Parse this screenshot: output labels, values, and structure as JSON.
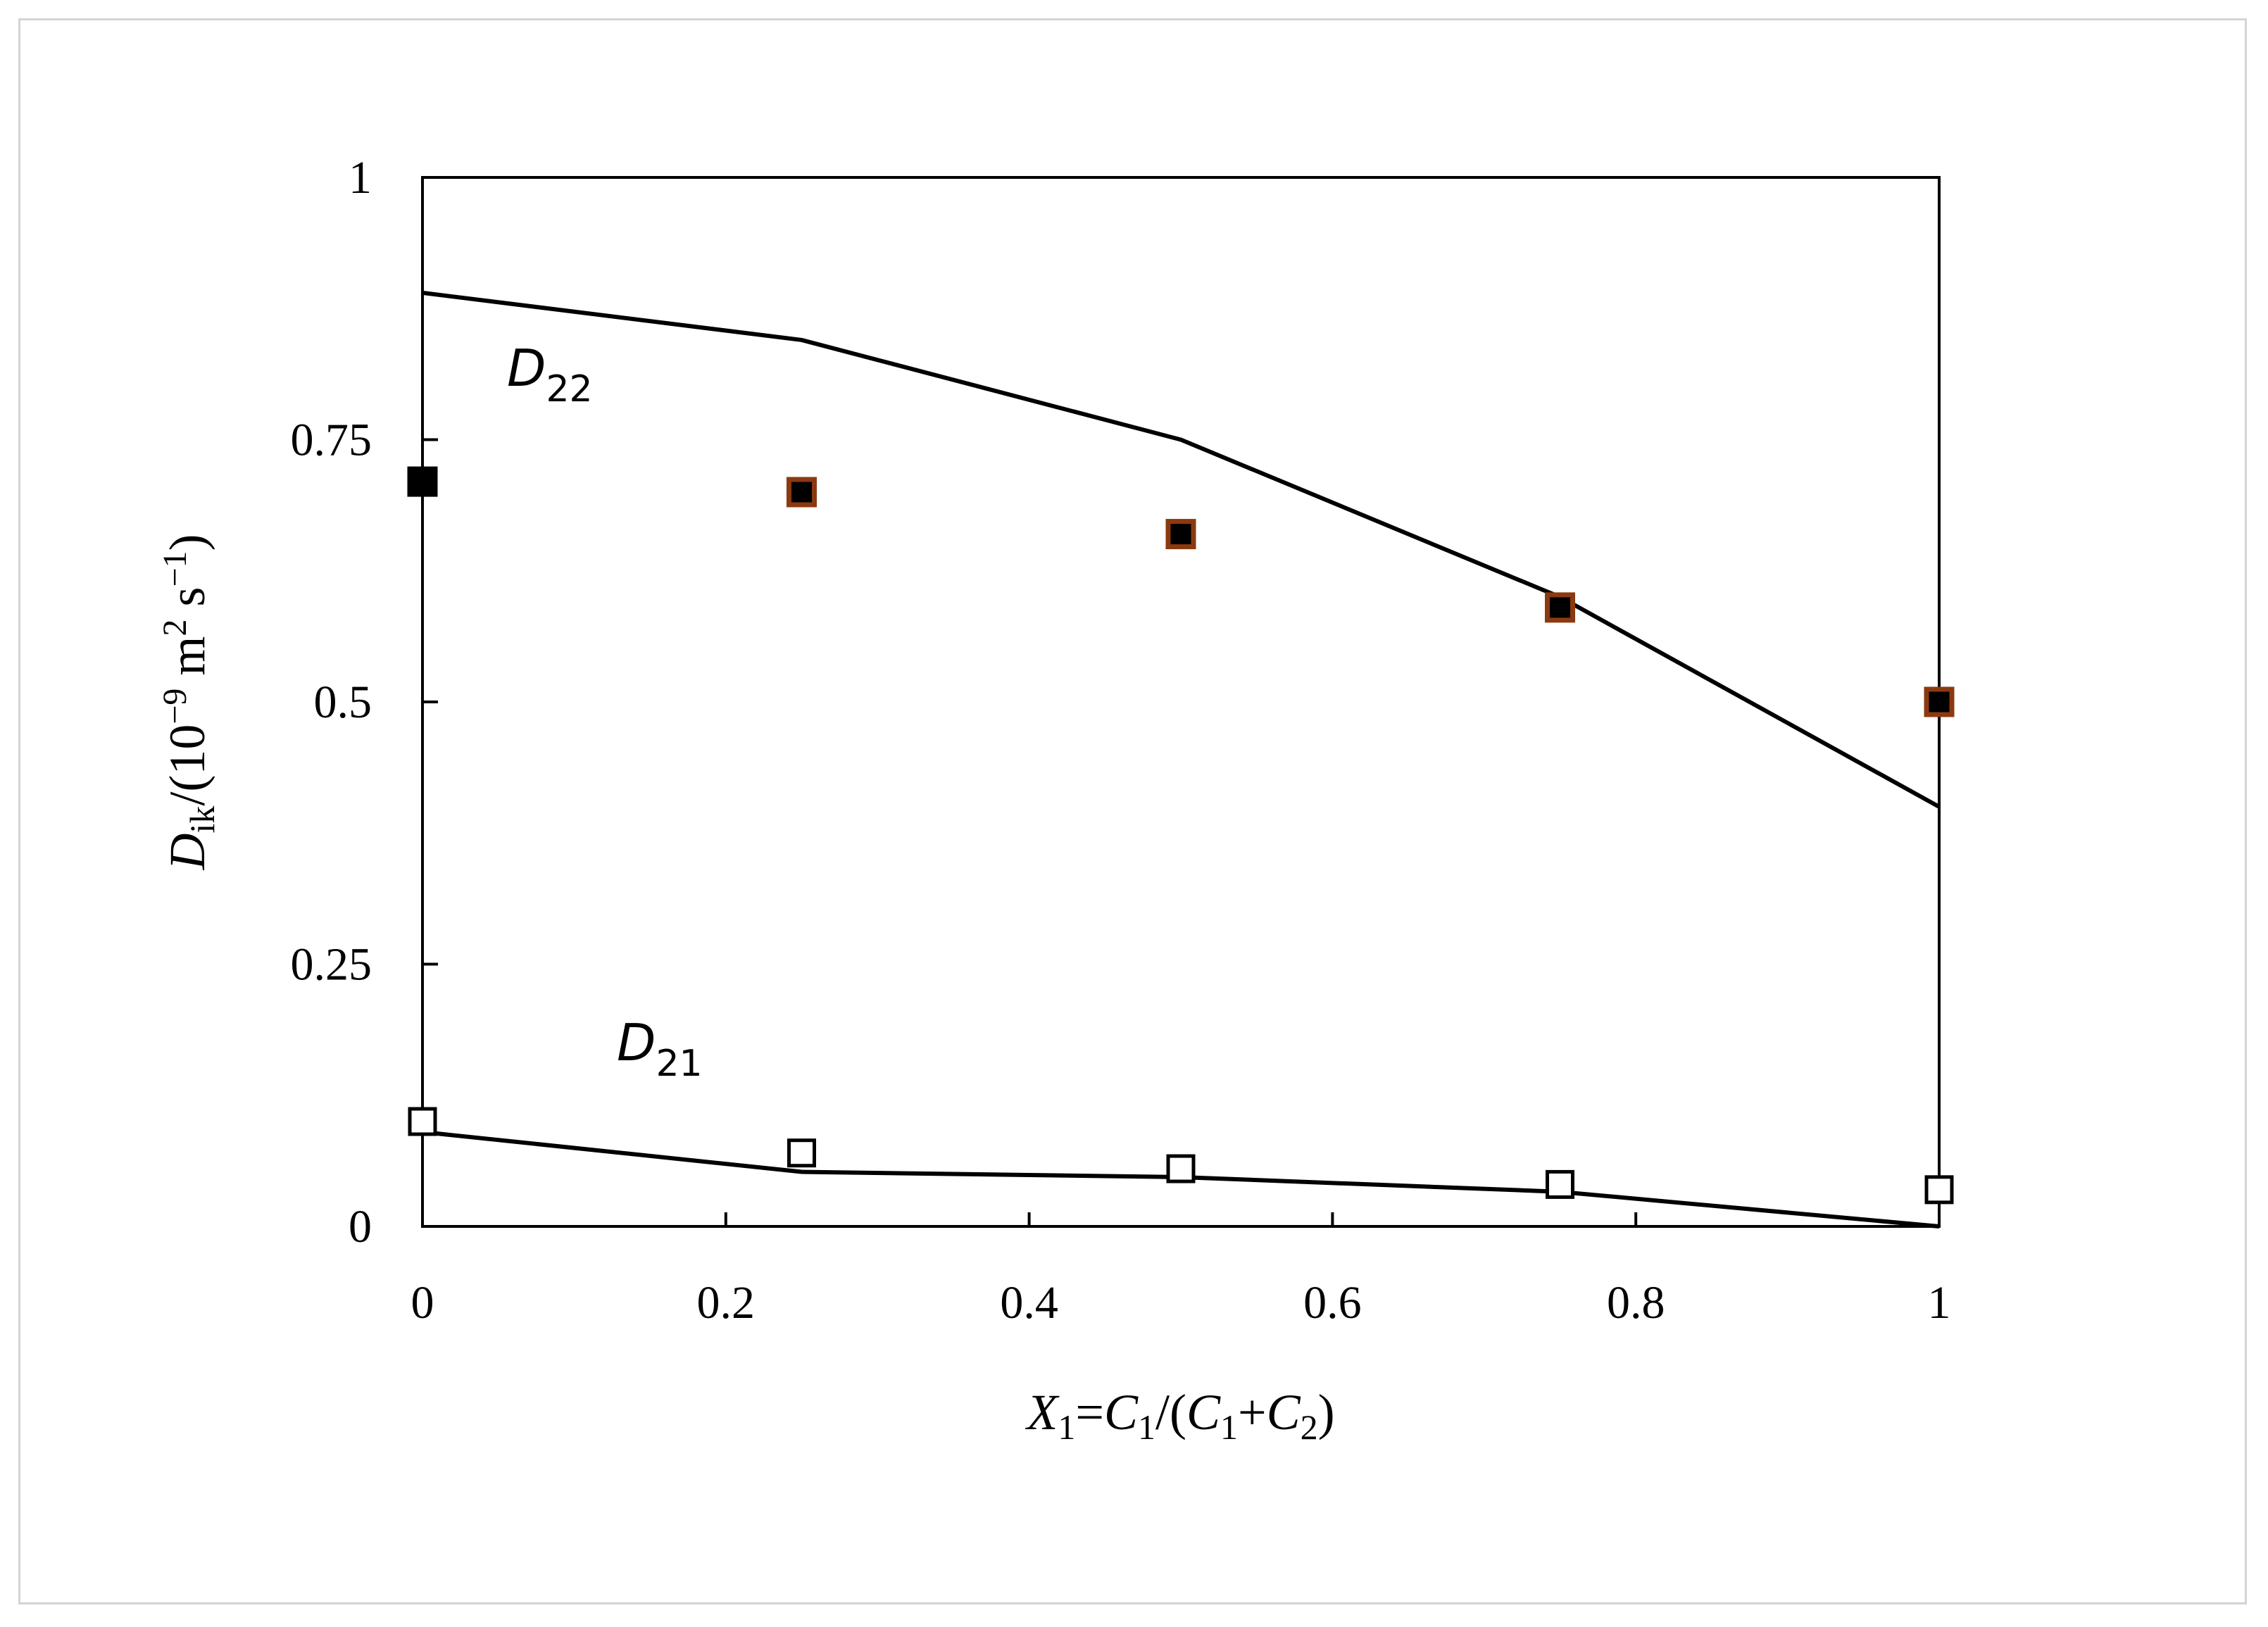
{
  "chart_data": {
    "type": "scatter",
    "xlim": [
      0,
      1
    ],
    "ylim": [
      0,
      1
    ],
    "x_ticks": [
      "0",
      "0.2",
      "0.4",
      "0.6",
      "0.8",
      "1"
    ],
    "y_ticks": [
      "0",
      "0.25",
      "0.5",
      "0.75",
      "1"
    ],
    "xlabel": {
      "X": "X",
      "X_sub": "1",
      "eq": "=",
      "C1": "C",
      "C1_sub": "1",
      "mid": "/(",
      "C1b": "C",
      "C1b_sub": "1",
      "plus": "+",
      "C2": "C",
      "C2_sub": "2",
      "close": ")"
    },
    "ylabel": {
      "D": "D",
      "D_sub": "ik",
      "open": "/(10",
      "exp1": "−9",
      "m": " m",
      "exp2": "2",
      "s": " s",
      "exp3": "−1",
      "close": ")"
    },
    "annotations": [
      {
        "main": "D",
        "sub": "22",
        "x": 0.06,
        "y": 0.8
      },
      {
        "main": "D",
        "sub": "21",
        "x": 0.13,
        "y": 0.145
      }
    ],
    "series": [
      {
        "kind": "points",
        "marker": "filled-square",
        "x": [
          0,
          0.25,
          0.5,
          0.75,
          1
        ],
        "y": [
          0.71,
          0.7,
          0.66,
          0.59,
          0.5
        ],
        "edge_colors": [
          "#000000",
          "#8b3a0f",
          "#8b3a0f",
          "#8b3a0f",
          "#8b3a0f"
        ]
      },
      {
        "kind": "line",
        "x": [
          0,
          0.25,
          0.5,
          0.75,
          1
        ],
        "y": [
          0.89,
          0.845,
          0.75,
          0.6,
          0.4
        ]
      },
      {
        "kind": "points",
        "marker": "open-square",
        "x": [
          0,
          0.25,
          0.5,
          0.75,
          1
        ],
        "y": [
          0.1,
          0.07,
          0.055,
          0.04,
          0.035
        ]
      },
      {
        "kind": "line",
        "x": [
          0,
          0.25,
          0.5,
          0.75,
          1
        ],
        "y": [
          0.09,
          0.052,
          0.047,
          0.033,
          0.0
        ]
      }
    ],
    "grid": false,
    "legend": "none",
    "colors": {
      "axis": "#000000",
      "marker_fill": "#000000",
      "frame_border": "#d4d4d4"
    }
  }
}
